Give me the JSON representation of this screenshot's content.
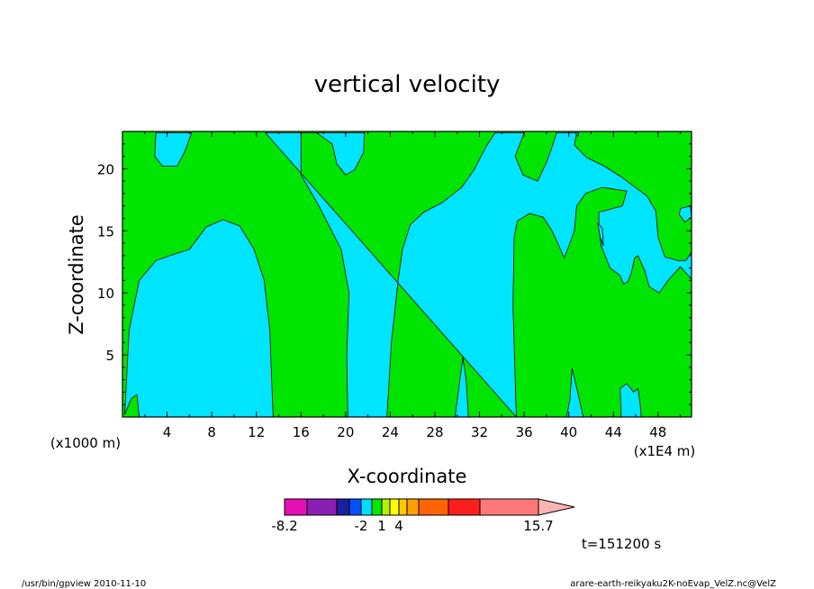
{
  "chart_data": {
    "type": "heatmap",
    "title": "vertical velocity",
    "xlabel": "X-coordinate",
    "ylabel": "Z-coordinate",
    "x_unit_left": "(x1000 m)",
    "x_unit_right": "(x1E4 m)",
    "xlim": [
      0,
      51
    ],
    "ylim": [
      0,
      23
    ],
    "xticks": [
      4,
      8,
      12,
      16,
      20,
      24,
      28,
      32,
      36,
      40,
      44,
      48
    ],
    "yticks": [
      5,
      10,
      15,
      20
    ],
    "time_label": "t=151200 s",
    "colorbar": {
      "tick_labels": [
        "-8.2",
        "-2",
        "1",
        "4",
        "15.7"
      ],
      "colors": [
        "#e60fb4",
        "#8c1eb4",
        "#1e1ea0",
        "#0050ff",
        "#00dcff",
        "#00e600",
        "#b4f000",
        "#ffff00",
        "#ffc800",
        "#ffa000",
        "#ff6400",
        "#ff1e1e",
        "#ff7878",
        "#ffb4b4"
      ]
    },
    "fields": {
      "negative_color": "#00e5ff",
      "positive_color": "#00e500"
    },
    "negative_regions": [
      [
        [
          0.2,
          0.2
        ],
        [
          0.6,
          7
        ],
        [
          1.5,
          11
        ],
        [
          3,
          12.6
        ],
        [
          4.6,
          13.1
        ],
        [
          6,
          13.5
        ],
        [
          7.5,
          15.3
        ],
        [
          9,
          15.9
        ],
        [
          10.5,
          15.4
        ],
        [
          11.8,
          13.5
        ],
        [
          12.7,
          11
        ],
        [
          13.2,
          7
        ],
        [
          13.5,
          0
        ],
        [
          1.5,
          0
        ],
        [
          1.3,
          1.8
        ],
        [
          0.8,
          1.5
        ]
      ],
      [
        [
          3,
          22.9
        ],
        [
          6.2,
          22.9
        ],
        [
          5.6,
          21.4
        ],
        [
          4.9,
          20.2
        ],
        [
          3.6,
          20.2
        ],
        [
          2.9,
          21
        ]
      ],
      [
        [
          12.8,
          22.9
        ],
        [
          21.7,
          22.9
        ],
        [
          21.6,
          21.3
        ],
        [
          20.8,
          19.9
        ],
        [
          20,
          19.5
        ],
        [
          19.2,
          20.4
        ],
        [
          18.8,
          22
        ],
        [
          17.4,
          22.9
        ],
        [
          16,
          22.9
        ],
        [
          16,
          19.5
        ],
        [
          17.6,
          17
        ],
        [
          19.6,
          13.5
        ],
        [
          20.3,
          10
        ],
        [
          20.1,
          5
        ],
        [
          20.2,
          0
        ],
        [
          23.7,
          0
        ],
        [
          24.1,
          6
        ],
        [
          24.7,
          11
        ],
        [
          25.1,
          13.5
        ],
        [
          25.8,
          15.5
        ],
        [
          27,
          16.5
        ],
        [
          28.7,
          17.3
        ],
        [
          30.4,
          18.5
        ],
        [
          31.5,
          19.9
        ],
        [
          32.6,
          21.8
        ],
        [
          33.4,
          22.9
        ],
        [
          36,
          22.9
        ],
        [
          35.2,
          21
        ],
        [
          35.9,
          19.5
        ],
        [
          37.2,
          19
        ],
        [
          38,
          20.5
        ],
        [
          38.6,
          22
        ],
        [
          38.9,
          22.9
        ],
        [
          40.7,
          22.9
        ],
        [
          40.5,
          21.9
        ],
        [
          41.6,
          20.9
        ],
        [
          43.2,
          20.2
        ],
        [
          44.6,
          19.4
        ],
        [
          45.8,
          18.6
        ],
        [
          47,
          17.8
        ],
        [
          47.8,
          16.6
        ],
        [
          48,
          14.5
        ],
        [
          48.6,
          12.9
        ],
        [
          49.8,
          12.6
        ],
        [
          50.5,
          12.6
        ],
        [
          51,
          13.3
        ],
        [
          51,
          11.1
        ],
        [
          50,
          12.1
        ],
        [
          48.9,
          11
        ],
        [
          48.1,
          10
        ],
        [
          47.2,
          10.5
        ],
        [
          46.8,
          11.8
        ],
        [
          46.2,
          13
        ],
        [
          45.9,
          12.8
        ],
        [
          45.6,
          11.6
        ],
        [
          45.3,
          10.9
        ],
        [
          44.9,
          10.7
        ],
        [
          44.6,
          11.4
        ],
        [
          43.7,
          12
        ],
        [
          42.9,
          13.8
        ],
        [
          42.7,
          15.1
        ],
        [
          42.7,
          16.5
        ],
        [
          44.8,
          17
        ],
        [
          45.2,
          18.2
        ],
        [
          43,
          18.5
        ],
        [
          41.5,
          18
        ],
        [
          40.7,
          17
        ],
        [
          40.5,
          15
        ],
        [
          40.1,
          14
        ],
        [
          39.6,
          12.8
        ],
        [
          39,
          14
        ],
        [
          38.5,
          15
        ],
        [
          37.7,
          16.1
        ],
        [
          36.5,
          16.4
        ],
        [
          35.4,
          15.8
        ],
        [
          35.1,
          14.5
        ],
        [
          35,
          9
        ],
        [
          35.3,
          0
        ],
        [
          29.8,
          0
        ],
        [
          30.5,
          4.8
        ],
        [
          30.8,
          3
        ],
        [
          31,
          0
        ],
        [
          35.3,
          0
        ]
      ],
      [
        [
          40.6,
          22.9
        ],
        [
          40.9,
          22.9
        ],
        [
          40.8,
          22.6
        ]
      ],
      [
        [
          42.6,
          15.6
        ],
        [
          43,
          15.2
        ],
        [
          43.1,
          13.8
        ],
        [
          42.8,
          14.5
        ]
      ],
      [
        [
          41.3,
          0
        ],
        [
          40.9,
          1.6
        ],
        [
          40.3,
          3.9
        ],
        [
          40.1,
          1.4
        ],
        [
          39.8,
          0
        ]
      ],
      [
        [
          44.7,
          0
        ],
        [
          44.6,
          2.3
        ],
        [
          45.2,
          2.7
        ],
        [
          45.8,
          2
        ],
        [
          46.2,
          2.3
        ],
        [
          46.4,
          1
        ],
        [
          46.5,
          0
        ]
      ],
      [
        [
          50,
          16.8
        ],
        [
          50.9,
          17
        ],
        [
          51,
          16.1
        ],
        [
          50.4,
          15.7
        ],
        [
          49.9,
          16.3
        ]
      ]
    ],
    "footer_left": "/usr/bin/gpview  2010-11-10",
    "footer_right": "arare-earth-reikyaku2K-noEvap_VelZ.nc@VelZ"
  }
}
